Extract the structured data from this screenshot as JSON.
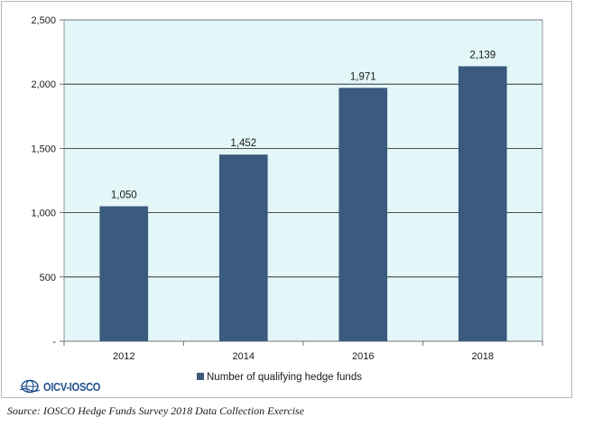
{
  "chart_data": {
    "type": "bar",
    "categories": [
      "2012",
      "2014",
      "2016",
      "2018"
    ],
    "series": [
      {
        "name": "Number of qualifying hedge funds",
        "values": [
          1050,
          1452,
          1971,
          2139
        ]
      }
    ],
    "data_labels": [
      "1,050",
      "1,452",
      "1,971",
      "2,139"
    ],
    "ylim": [
      0,
      2500
    ],
    "yticks": [
      0,
      500,
      1000,
      1500,
      2000,
      2500
    ],
    "ytick_labels": [
      "-",
      "500",
      "1,000",
      "1,500",
      "2,000",
      "2,500"
    ],
    "xlabel": "",
    "ylabel": "",
    "grid": true,
    "legend_position": "bottom",
    "colors": {
      "bar": "#3a5a7e",
      "plot_background": "#e3f6f8",
      "grid": "#1a1a1a"
    }
  },
  "legend": {
    "label": "Number of qualifying hedge funds"
  },
  "logo": {
    "text": "OICV-IOSCO",
    "icon": "globe-icon"
  },
  "source": "Source: IOSCO Hedge Funds Survey 2018 Data Collection Exercise"
}
